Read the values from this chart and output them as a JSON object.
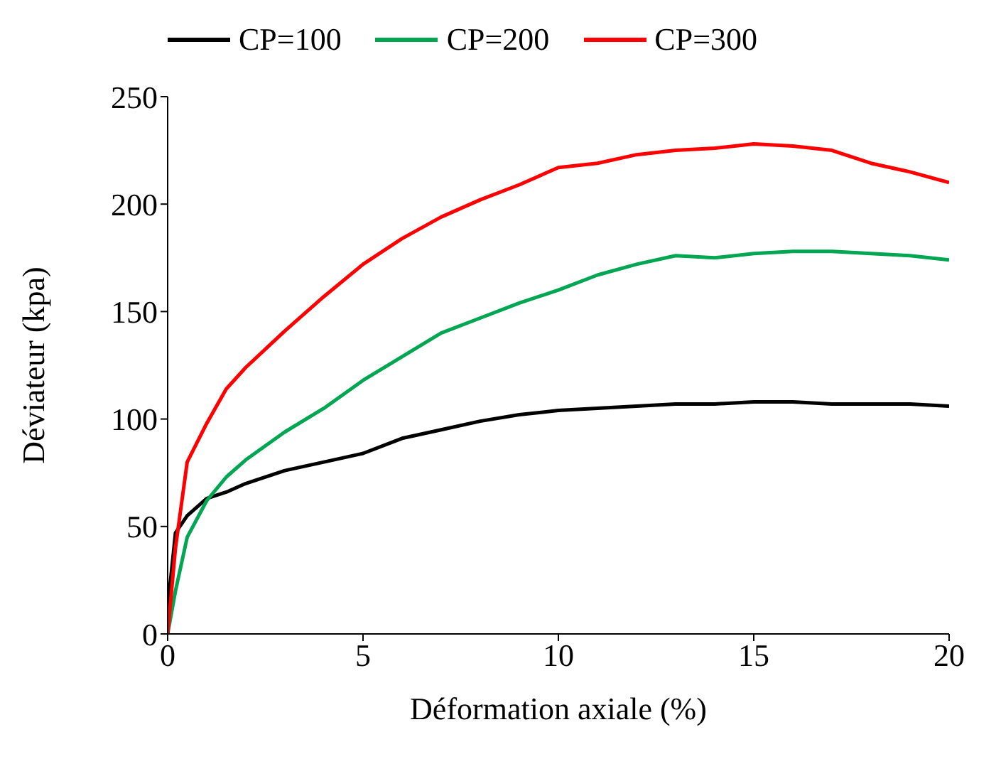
{
  "chart_data": {
    "type": "line",
    "xlabel": "Déformation axiale (%)",
    "ylabel": "Déviateur (kpa)",
    "xlim": [
      0,
      20
    ],
    "xticks": [
      0,
      5,
      10,
      15,
      20
    ],
    "ylim": [
      0,
      250
    ],
    "yticks": [
      0,
      50,
      100,
      150,
      200,
      250
    ],
    "grid": false,
    "legend": "top",
    "marker": "none",
    "line_style": "solid",
    "x": [
      0,
      0.2,
      0.5,
      1,
      1.5,
      2,
      3,
      4,
      5,
      6,
      7,
      8,
      9,
      10,
      11,
      12,
      13,
      14,
      15,
      16,
      17,
      18,
      19,
      20
    ],
    "series": [
      {
        "name": "CP=100",
        "color": "#000000",
        "values": [
          12,
          47,
          55,
          63,
          66,
          70,
          76,
          80,
          84,
          91,
          95,
          99,
          102,
          104,
          105,
          106,
          107,
          107,
          108,
          108,
          107,
          107,
          107,
          106
        ]
      },
      {
        "name": "CP=200",
        "color": "#00a651",
        "values": [
          0,
          20,
          45,
          62,
          73,
          81,
          94,
          105,
          118,
          129,
          140,
          147,
          154,
          160,
          167,
          172,
          176,
          175,
          177,
          178,
          178,
          177,
          176,
          174
        ]
      },
      {
        "name": "CP=300",
        "color": "#ff0000",
        "values": [
          0,
          40,
          80,
          98,
          114,
          124,
          141,
          157,
          172,
          184,
          194,
          202,
          209,
          217,
          219,
          223,
          225,
          226,
          228,
          227,
          225,
          219,
          215,
          210
        ]
      }
    ]
  }
}
